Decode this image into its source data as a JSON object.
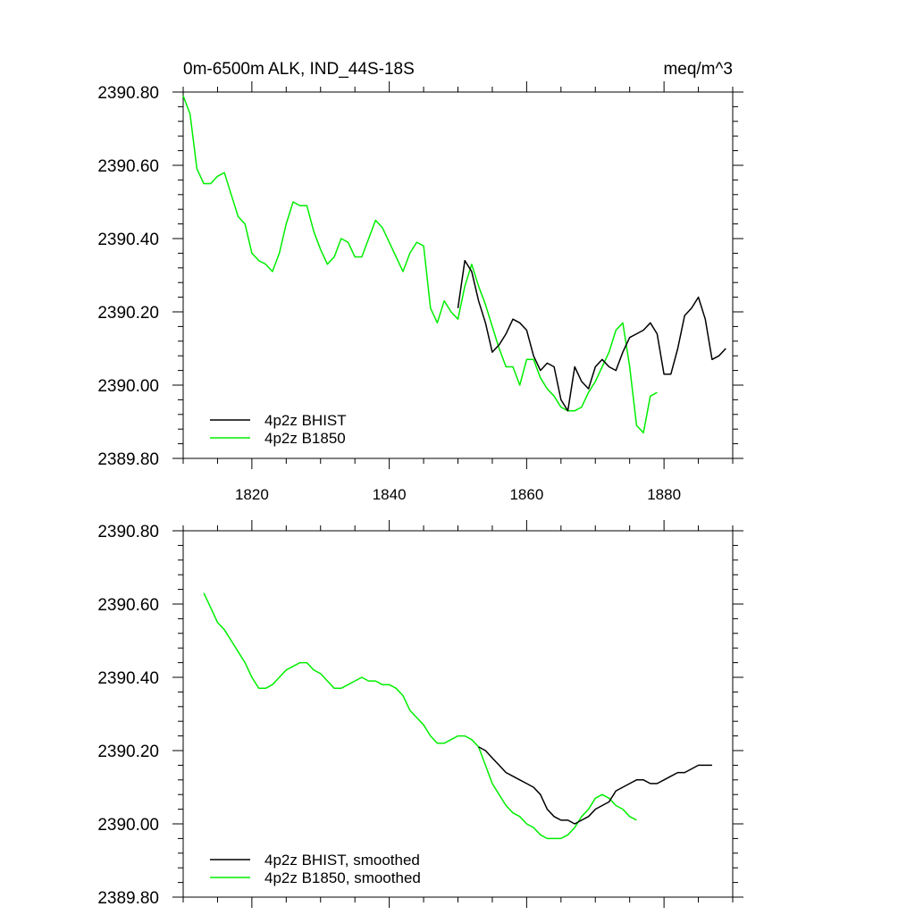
{
  "chart_data": [
    {
      "type": "line",
      "title": "0m-6500m ALK, IND_44S-18S",
      "units": "meq/m^3",
      "xlim": [
        1810,
        1890
      ],
      "ylim": [
        2389.8,
        2390.8
      ],
      "xticks": [
        1820,
        1840,
        1860,
        1880
      ],
      "xtick_labels": [
        "1820",
        "1840",
        "1860",
        "1880"
      ],
      "yticks": [
        2389.8,
        2390.0,
        2390.2,
        2390.4,
        2390.6,
        2390.8
      ],
      "ytick_labels": [
        "2389.80",
        "2390.00",
        "2390.20",
        "2390.40",
        "2390.60",
        "2390.80"
      ],
      "legend": [
        "4p2z BHIST",
        "4p2z B1850"
      ],
      "legend_position": "bottom-left",
      "series": [
        {
          "name": "4p2z BHIST",
          "color": "#000000",
          "x": [
            1850,
            1851,
            1852,
            1853,
            1854,
            1855,
            1856,
            1857,
            1858,
            1859,
            1860,
            1861,
            1862,
            1863,
            1864,
            1865,
            1866,
            1867,
            1868,
            1869,
            1870,
            1871,
            1872,
            1873,
            1874,
            1875,
            1876,
            1877,
            1878,
            1879,
            1880,
            1881,
            1882,
            1883,
            1884,
            1885,
            1886,
            1887,
            1888,
            1889
          ],
          "y": [
            2390.21,
            2390.34,
            2390.31,
            2390.23,
            2390.17,
            2390.09,
            2390.11,
            2390.14,
            2390.18,
            2390.17,
            2390.15,
            2390.08,
            2390.04,
            2390.06,
            2390.05,
            2389.96,
            2389.93,
            2390.05,
            2390.01,
            2389.99,
            2390.05,
            2390.07,
            2390.05,
            2390.04,
            2390.09,
            2390.13,
            2390.14,
            2390.15,
            2390.17,
            2390.14,
            2390.03,
            2390.03,
            2390.1,
            2390.19,
            2390.21,
            2390.24,
            2390.18,
            2390.07,
            2390.08,
            2390.1
          ]
        },
        {
          "name": "4p2z B1850",
          "color": "#00ee00",
          "x": [
            1810,
            1811,
            1812,
            1813,
            1814,
            1815,
            1816,
            1817,
            1818,
            1819,
            1820,
            1821,
            1822,
            1823,
            1824,
            1825,
            1826,
            1827,
            1828,
            1829,
            1830,
            1831,
            1832,
            1833,
            1834,
            1835,
            1836,
            1837,
            1838,
            1839,
            1840,
            1841,
            1842,
            1843,
            1844,
            1845,
            1846,
            1847,
            1848,
            1849,
            1850,
            1851,
            1852,
            1853,
            1854,
            1855,
            1856,
            1857,
            1858,
            1859,
            1860,
            1861,
            1862,
            1863,
            1864,
            1865,
            1866,
            1867,
            1868,
            1869,
            1870,
            1871,
            1872,
            1873,
            1874,
            1875,
            1876,
            1877,
            1878,
            1879
          ],
          "y": [
            2390.79,
            2390.74,
            2390.59,
            2390.55,
            2390.55,
            2390.57,
            2390.58,
            2390.52,
            2390.46,
            2390.44,
            2390.36,
            2390.34,
            2390.33,
            2390.31,
            2390.36,
            2390.44,
            2390.5,
            2390.49,
            2390.49,
            2390.42,
            2390.37,
            2390.33,
            2390.35,
            2390.4,
            2390.39,
            2390.35,
            2390.35,
            2390.4,
            2390.45,
            2390.43,
            2390.39,
            2390.35,
            2390.31,
            2390.36,
            2390.39,
            2390.38,
            2390.21,
            2390.17,
            2390.23,
            2390.2,
            2390.18,
            2390.27,
            2390.33,
            2390.27,
            2390.22,
            2390.16,
            2390.1,
            2390.05,
            2390.05,
            2390.0,
            2390.07,
            2390.07,
            2390.02,
            2389.99,
            2389.97,
            2389.94,
            2389.93,
            2389.93,
            2389.94,
            2389.98,
            2390.01,
            2390.05,
            2390.09,
            2390.15,
            2390.17,
            2390.05,
            2389.89,
            2389.87,
            2389.97,
            2389.98
          ]
        }
      ]
    },
    {
      "type": "line",
      "title": "",
      "xlim": [
        1810,
        1890
      ],
      "ylim": [
        2389.8,
        2390.8
      ],
      "xticks": [
        1820,
        1840,
        1860,
        1880
      ],
      "xtick_labels": [],
      "yticks": [
        2389.8,
        2390.0,
        2390.2,
        2390.4,
        2390.6,
        2390.8
      ],
      "ytick_labels": [
        "2389.80",
        "2390.00",
        "2390.20",
        "2390.40",
        "2390.60",
        "2390.80"
      ],
      "legend": [
        "4p2z BHIST, smoothed",
        "4p2z B1850, smoothed"
      ],
      "legend_position": "bottom-left",
      "series": [
        {
          "name": "4p2z BHIST, smoothed",
          "color": "#000000",
          "x": [
            1853,
            1854,
            1855,
            1856,
            1857,
            1858,
            1859,
            1860,
            1861,
            1862,
            1863,
            1864,
            1865,
            1866,
            1867,
            1868,
            1869,
            1870,
            1871,
            1872,
            1873,
            1874,
            1875,
            1876,
            1877,
            1878,
            1879,
            1880,
            1881,
            1882,
            1883,
            1884,
            1885,
            1886,
            1887
          ],
          "y": [
            2390.21,
            2390.2,
            2390.18,
            2390.16,
            2390.14,
            2390.13,
            2390.12,
            2390.11,
            2390.1,
            2390.08,
            2390.04,
            2390.02,
            2390.01,
            2390.01,
            2390.0,
            2390.01,
            2390.02,
            2390.04,
            2390.05,
            2390.06,
            2390.09,
            2390.1,
            2390.11,
            2390.12,
            2390.12,
            2390.11,
            2390.11,
            2390.12,
            2390.13,
            2390.14,
            2390.14,
            2390.15,
            2390.16,
            2390.16,
            2390.16
          ]
        },
        {
          "name": "4p2z B1850, smoothed",
          "color": "#00ee00",
          "x": [
            1813,
            1814,
            1815,
            1816,
            1817,
            1818,
            1819,
            1820,
            1821,
            1822,
            1823,
            1824,
            1825,
            1826,
            1827,
            1828,
            1829,
            1830,
            1831,
            1832,
            1833,
            1834,
            1835,
            1836,
            1837,
            1838,
            1839,
            1840,
            1841,
            1842,
            1843,
            1844,
            1845,
            1846,
            1847,
            1848,
            1849,
            1850,
            1851,
            1852,
            1853,
            1854,
            1855,
            1856,
            1857,
            1858,
            1859,
            1860,
            1861,
            1862,
            1863,
            1864,
            1865,
            1866,
            1867,
            1868,
            1869,
            1870,
            1871,
            1872,
            1873,
            1874,
            1875,
            1876
          ],
          "y": [
            2390.63,
            2390.59,
            2390.55,
            2390.53,
            2390.5,
            2390.47,
            2390.44,
            2390.4,
            2390.37,
            2390.37,
            2390.38,
            2390.4,
            2390.42,
            2390.43,
            2390.44,
            2390.44,
            2390.42,
            2390.41,
            2390.39,
            2390.37,
            2390.37,
            2390.38,
            2390.39,
            2390.4,
            2390.39,
            2390.39,
            2390.38,
            2390.38,
            2390.37,
            2390.35,
            2390.31,
            2390.29,
            2390.27,
            2390.24,
            2390.22,
            2390.22,
            2390.23,
            2390.24,
            2390.24,
            2390.23,
            2390.21,
            2390.16,
            2390.11,
            2390.08,
            2390.05,
            2390.03,
            2390.02,
            2390.0,
            2389.99,
            2389.97,
            2389.96,
            2389.96,
            2389.96,
            2389.97,
            2389.99,
            2390.02,
            2390.04,
            2390.07,
            2390.08,
            2390.07,
            2390.05,
            2390.04,
            2390.02,
            2390.01
          ]
        }
      ]
    }
  ]
}
